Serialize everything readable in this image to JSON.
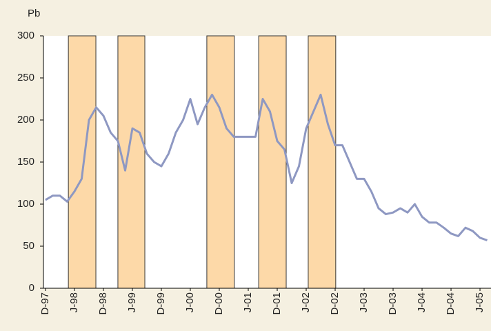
{
  "chart_data": {
    "type": "line",
    "y_axis_label": "Pb",
    "x": [
      0,
      0.25,
      0.5,
      0.75,
      1,
      1.25,
      1.5,
      1.75,
      2,
      2.25,
      2.5,
      2.75,
      3,
      3.25,
      3.5,
      3.75,
      4,
      4.25,
      4.5,
      4.75,
      5,
      5.25,
      5.5,
      5.75,
      6,
      6.25,
      6.5,
      6.75,
      7,
      7.25,
      7.5,
      7.75,
      8,
      8.25,
      8.5,
      8.75,
      9,
      9.25,
      9.5,
      9.75,
      10,
      10.25,
      10.5,
      10.75,
      11,
      11.25,
      11.5,
      11.75,
      12,
      12.25,
      12.5,
      12.75,
      13,
      13.25,
      13.5,
      13.75,
      14,
      14.25,
      14.5,
      14.75,
      15,
      15.25
    ],
    "series": [
      {
        "color": "#8e98c2",
        "values": [
          105,
          110,
          110,
          103,
          115,
          130,
          200,
          215,
          205,
          185,
          175,
          140,
          190,
          185,
          160,
          150,
          145,
          160,
          185,
          200,
          225,
          195,
          215,
          230,
          215,
          190,
          180,
          180,
          180,
          180,
          225,
          210,
          175,
          165,
          125,
          145,
          190,
          210,
          230,
          195,
          170,
          170,
          150,
          130,
          130,
          115,
          95,
          88,
          90,
          95,
          90,
          100,
          85,
          78,
          78,
          72,
          65,
          62,
          72,
          68,
          60,
          57
        ]
      }
    ],
    "shaded_periods": [
      {
        "start": 0.79,
        "end": 1.74
      },
      {
        "start": 2.5,
        "end": 3.43
      },
      {
        "start": 5.57,
        "end": 6.52
      },
      {
        "start": 7.36,
        "end": 8.31
      },
      {
        "start": 9.07,
        "end": 10.02
      }
    ],
    "shade_color": "#fdd9a8",
    "xlim": [
      -0.07,
      15.38
    ],
    "xticks": [
      {
        "value": 0,
        "label": "D-97"
      },
      {
        "value": 1,
        "label": "J-98"
      },
      {
        "value": 2,
        "label": "D-98"
      },
      {
        "value": 3,
        "label": "J-99"
      },
      {
        "value": 4,
        "label": "D-99"
      },
      {
        "value": 5,
        "label": "J-00"
      },
      {
        "value": 6,
        "label": "D-00"
      },
      {
        "value": 7,
        "label": "J-01"
      },
      {
        "value": 8,
        "label": "D-01"
      },
      {
        "value": 9,
        "label": "J-02"
      },
      {
        "value": 10,
        "label": "D-02"
      },
      {
        "value": 11,
        "label": "J-03"
      },
      {
        "value": 12,
        "label": "D-03"
      },
      {
        "value": 13,
        "label": "J-04"
      },
      {
        "value": 14,
        "label": "D-04"
      },
      {
        "value": 15,
        "label": "J-05"
      }
    ],
    "ylim": [
      0,
      300
    ],
    "yticks": [
      0,
      50,
      100,
      150,
      200,
      250,
      300
    ]
  }
}
